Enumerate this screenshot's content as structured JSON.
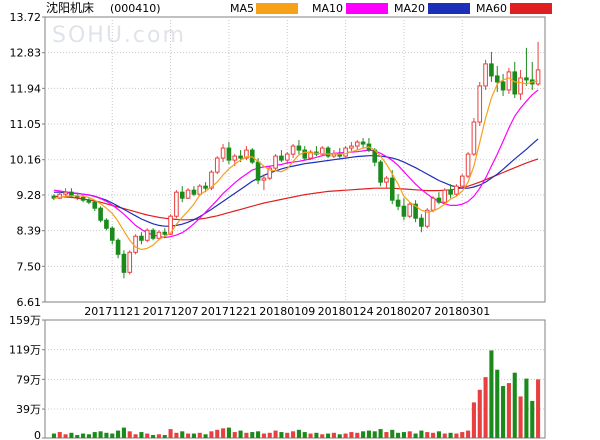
{
  "header": {
    "title": "沈阳机床",
    "code": "(000410)",
    "watermark": "SOHU.com"
  },
  "legend": [
    {
      "label": "MA5",
      "color": "#f7a11a"
    },
    {
      "label": "MA10",
      "color": "#ff00ff"
    },
    {
      "label": "MA20",
      "color": "#1c2fb8"
    },
    {
      "label": "MA60",
      "color": "#e02020"
    }
  ],
  "colors": {
    "up": "#e84040",
    "down": "#1a8a1a",
    "grid": "#c8c8c8",
    "axis": "#808080"
  },
  "chart_data": [
    {
      "type": "candlestick",
      "ylim": [
        6.61,
        13.72
      ],
      "y_ticks": [
        "13.72",
        "12.83",
        "11.94",
        "11.05",
        "10.16",
        "9.28",
        "8.39",
        "7.50",
        "6.61"
      ],
      "x_tick_labels": [
        "20171121",
        "20171207",
        "20171221",
        "20180109",
        "20180124",
        "20180207",
        "20180301"
      ],
      "x_tick_index": [
        10,
        20,
        30,
        40,
        50,
        60,
        70
      ],
      "ohlc": [
        [
          9.25,
          9.3,
          9.15,
          9.2
        ],
        [
          9.2,
          9.35,
          9.18,
          9.3
        ],
        [
          9.3,
          9.45,
          9.22,
          9.35
        ],
        [
          9.35,
          9.45,
          9.2,
          9.25
        ],
        [
          9.25,
          9.3,
          9.15,
          9.22
        ],
        [
          9.22,
          9.28,
          9.1,
          9.15
        ],
        [
          9.15,
          9.2,
          9.05,
          9.1
        ],
        [
          9.1,
          9.15,
          8.88,
          8.95
        ],
        [
          8.95,
          9.0,
          8.6,
          8.65
        ],
        [
          8.65,
          8.7,
          8.4,
          8.45
        ],
        [
          8.45,
          8.5,
          8.05,
          8.15
        ],
        [
          8.15,
          8.2,
          7.7,
          7.8
        ],
        [
          7.8,
          7.9,
          7.2,
          7.35
        ],
        [
          7.35,
          7.9,
          7.3,
          7.85
        ],
        [
          7.85,
          8.3,
          7.8,
          8.25
        ],
        [
          8.25,
          8.35,
          8.05,
          8.15
        ],
        [
          8.15,
          8.45,
          8.1,
          8.4
        ],
        [
          8.4,
          8.45,
          8.15,
          8.2
        ],
        [
          8.2,
          8.4,
          8.15,
          8.35
        ],
        [
          8.35,
          8.45,
          8.2,
          8.3
        ],
        [
          8.3,
          8.8,
          8.28,
          8.75
        ],
        [
          8.75,
          9.4,
          8.7,
          9.35
        ],
        [
          9.35,
          9.5,
          9.1,
          9.2
        ],
        [
          9.2,
          9.45,
          9.18,
          9.4
        ],
        [
          9.4,
          9.5,
          9.25,
          9.3
        ],
        [
          9.3,
          9.55,
          9.25,
          9.5
        ],
        [
          9.5,
          9.6,
          9.35,
          9.45
        ],
        [
          9.45,
          9.9,
          9.4,
          9.85
        ],
        [
          9.85,
          10.25,
          9.8,
          10.2
        ],
        [
          10.2,
          10.55,
          10.1,
          10.45
        ],
        [
          10.45,
          10.6,
          10.05,
          10.15
        ],
        [
          10.15,
          10.3,
          10.0,
          10.25
        ],
        [
          10.25,
          10.4,
          10.1,
          10.2
        ],
        [
          10.2,
          10.5,
          10.15,
          10.4
        ],
        [
          10.4,
          10.45,
          10.05,
          10.1
        ],
        [
          10.1,
          10.2,
          9.55,
          9.65
        ],
        [
          9.65,
          9.8,
          9.4,
          9.7
        ],
        [
          9.7,
          10.0,
          9.65,
          9.95
        ],
        [
          9.95,
          10.3,
          9.9,
          10.25
        ],
        [
          10.25,
          10.4,
          10.1,
          10.15
        ],
        [
          10.15,
          10.35,
          10.05,
          10.3
        ],
        [
          10.3,
          10.55,
          10.2,
          10.5
        ],
        [
          10.5,
          10.65,
          10.3,
          10.4
        ],
        [
          10.4,
          10.5,
          10.15,
          10.2
        ],
        [
          10.2,
          10.4,
          10.15,
          10.35
        ],
        [
          10.35,
          10.5,
          10.25,
          10.3
        ],
        [
          10.3,
          10.5,
          10.25,
          10.45
        ],
        [
          10.45,
          10.5,
          10.2,
          10.25
        ],
        [
          10.25,
          10.4,
          10.2,
          10.3
        ],
        [
          10.3,
          10.45,
          10.2,
          10.25
        ],
        [
          10.25,
          10.5,
          10.2,
          10.45
        ],
        [
          10.45,
          10.6,
          10.35,
          10.5
        ],
        [
          10.5,
          10.65,
          10.4,
          10.6
        ],
        [
          10.6,
          10.7,
          10.45,
          10.55
        ],
        [
          10.55,
          10.7,
          10.35,
          10.4
        ],
        [
          10.4,
          10.45,
          10.0,
          10.1
        ],
        [
          10.1,
          10.15,
          9.5,
          9.6
        ],
        [
          9.6,
          9.75,
          9.45,
          9.7
        ],
        [
          9.7,
          9.9,
          9.05,
          9.15
        ],
        [
          9.15,
          9.3,
          8.9,
          9.0
        ],
        [
          9.0,
          9.2,
          8.65,
          8.75
        ],
        [
          8.75,
          9.1,
          8.7,
          9.05
        ],
        [
          9.05,
          9.15,
          8.6,
          8.7
        ],
        [
          8.7,
          8.8,
          8.35,
          8.5
        ],
        [
          8.5,
          8.95,
          8.45,
          8.9
        ],
        [
          8.9,
          9.25,
          8.85,
          9.2
        ],
        [
          9.2,
          9.35,
          9.05,
          9.1
        ],
        [
          9.1,
          9.45,
          9.05,
          9.4
        ],
        [
          9.4,
          9.55,
          9.2,
          9.3
        ],
        [
          9.3,
          9.55,
          9.25,
          9.5
        ],
        [
          9.5,
          9.8,
          9.45,
          9.75
        ],
        [
          9.75,
          10.35,
          9.7,
          10.3
        ],
        [
          10.3,
          11.2,
          10.25,
          11.1
        ],
        [
          11.1,
          12.1,
          11.0,
          12.0
        ],
        [
          12.0,
          12.65,
          11.9,
          12.55
        ],
        [
          12.55,
          12.85,
          12.1,
          12.25
        ],
        [
          12.25,
          12.5,
          11.85,
          12.1
        ],
        [
          12.1,
          12.3,
          11.75,
          11.9
        ],
        [
          11.9,
          12.45,
          11.8,
          12.35
        ],
        [
          12.35,
          12.6,
          11.7,
          11.8
        ],
        [
          11.8,
          12.4,
          11.65,
          12.2
        ],
        [
          12.2,
          12.95,
          12.0,
          12.15
        ],
        [
          12.15,
          12.6,
          11.9,
          12.05
        ],
        [
          12.05,
          13.1,
          12.0,
          12.4
        ]
      ],
      "ma": {
        "MA5": [
          9.2,
          9.22,
          9.25,
          9.26,
          9.26,
          9.25,
          9.22,
          9.15,
          9.06,
          8.95,
          8.82,
          8.62,
          8.38,
          8.15,
          7.98,
          7.92,
          7.95,
          8.03,
          8.17,
          8.25,
          8.33,
          8.55,
          8.72,
          8.88,
          9.05,
          9.28,
          9.38,
          9.48,
          9.6,
          9.78,
          9.93,
          10.05,
          10.15,
          10.23,
          10.23,
          10.12,
          10.0,
          9.9,
          9.88,
          9.86,
          9.93,
          10.12,
          10.28,
          10.35,
          10.33,
          10.32,
          10.31,
          10.3,
          10.31,
          10.3,
          10.31,
          10.36,
          10.4,
          10.45,
          10.48,
          10.4,
          10.25,
          10.05,
          9.8,
          9.55,
          9.25,
          9.1,
          9.0,
          8.9,
          8.85,
          8.88,
          8.95,
          9.05,
          9.18,
          9.25,
          9.38,
          9.6,
          10.0,
          10.6,
          11.2,
          11.7,
          12.05,
          12.15,
          12.2,
          12.1,
          12.08,
          12.05,
          12.1,
          12.12
        ],
        "MA10": [
          9.4,
          9.38,
          9.36,
          9.34,
          9.32,
          9.3,
          9.28,
          9.24,
          9.19,
          9.12,
          9.03,
          8.92,
          8.8,
          8.66,
          8.52,
          8.42,
          8.34,
          8.28,
          8.25,
          8.22,
          8.24,
          8.28,
          8.34,
          8.44,
          8.56,
          8.7,
          8.85,
          9.0,
          9.15,
          9.32,
          9.45,
          9.58,
          9.7,
          9.8,
          9.9,
          9.95,
          9.98,
          10.0,
          10.02,
          10.04,
          10.08,
          10.1,
          10.12,
          10.15,
          10.18,
          10.22,
          10.26,
          10.3,
          10.32,
          10.33,
          10.34,
          10.35,
          10.36,
          10.38,
          10.4,
          10.38,
          10.32,
          10.24,
          10.14,
          10.02,
          9.86,
          9.7,
          9.55,
          9.42,
          9.3,
          9.2,
          9.12,
          9.06,
          9.02,
          9.02,
          9.05,
          9.12,
          9.25,
          9.45,
          9.7,
          10.0,
          10.3,
          10.62,
          10.95,
          11.25,
          11.45,
          11.62,
          11.78,
          11.9
        ],
        "MA20": [
          9.35,
          9.35,
          9.34,
          9.33,
          9.32,
          9.3,
          9.28,
          9.25,
          9.2,
          9.15,
          9.08,
          9.0,
          8.92,
          8.84,
          8.76,
          8.68,
          8.62,
          8.56,
          8.52,
          8.5,
          8.5,
          8.52,
          8.55,
          8.6,
          8.66,
          8.74,
          8.83,
          8.92,
          9.02,
          9.12,
          9.22,
          9.32,
          9.42,
          9.52,
          9.62,
          9.7,
          9.77,
          9.83,
          9.88,
          9.93,
          9.97,
          10.0,
          10.03,
          10.06,
          10.08,
          10.1,
          10.12,
          10.14,
          10.16,
          10.18,
          10.2,
          10.22,
          10.24,
          10.25,
          10.26,
          10.26,
          10.25,
          10.23,
          10.2,
          10.16,
          10.1,
          10.03,
          9.96,
          9.88,
          9.8,
          9.72,
          9.64,
          9.58,
          9.52,
          9.48,
          9.45,
          9.45,
          9.48,
          9.53,
          9.6,
          9.7,
          9.8,
          9.92,
          10.05,
          10.18,
          10.3,
          10.42,
          10.55,
          10.68
        ],
        "MA60": [
          9.25,
          9.24,
          9.23,
          9.22,
          9.2,
          9.18,
          9.16,
          9.13,
          9.1,
          9.06,
          9.02,
          8.98,
          8.94,
          8.9,
          8.86,
          8.82,
          8.78,
          8.75,
          8.72,
          8.7,
          8.68,
          8.67,
          8.66,
          8.66,
          8.67,
          8.68,
          8.7,
          8.73,
          8.76,
          8.8,
          8.84,
          8.88,
          8.92,
          8.96,
          9.0,
          9.04,
          9.08,
          9.11,
          9.14,
          9.17,
          9.2,
          9.23,
          9.26,
          9.29,
          9.31,
          9.33,
          9.35,
          9.37,
          9.38,
          9.39,
          9.4,
          9.41,
          9.42,
          9.43,
          9.44,
          9.45,
          9.45,
          9.45,
          9.45,
          9.44,
          9.43,
          9.42,
          9.41,
          9.4,
          9.39,
          9.39,
          9.39,
          9.4,
          9.41,
          9.43,
          9.46,
          9.5,
          9.55,
          9.6,
          9.66,
          9.72,
          9.78,
          9.84,
          9.9,
          9.96,
          10.02,
          10.08,
          10.13,
          10.18
        ]
      }
    },
    {
      "type": "bar",
      "title": "volume",
      "ylim": [
        0,
        159
      ],
      "y_ticks": [
        "159万",
        "119万",
        "79万",
        "39万",
        "0"
      ],
      "values": [
        6,
        8,
        5,
        7,
        4,
        6,
        5,
        8,
        9,
        7,
        6,
        10,
        14,
        9,
        5,
        8,
        6,
        4,
        5,
        4,
        12,
        7,
        9,
        6,
        6,
        7,
        5,
        9,
        11,
        13,
        14,
        8,
        10,
        7,
        8,
        9,
        6,
        7,
        10,
        8,
        7,
        9,
        11,
        8,
        6,
        7,
        5,
        6,
        7,
        5,
        6,
        8,
        7,
        9,
        10,
        9,
        12,
        8,
        11,
        7,
        8,
        9,
        6,
        10,
        8,
        7,
        9,
        6,
        7,
        6,
        8,
        10,
        48,
        65,
        82,
        118,
        92,
        70,
        74,
        88,
        56,
        80,
        50,
        79
      ],
      "up_flags": [
        0,
        1,
        1,
        0,
        0,
        0,
        0,
        0,
        0,
        0,
        0,
        0,
        0,
        1,
        1,
        0,
        1,
        0,
        1,
        0,
        1,
        1,
        0,
        1,
        0,
        1,
        0,
        1,
        1,
        1,
        0,
        1,
        0,
        1,
        0,
        0,
        1,
        1,
        1,
        0,
        1,
        1,
        0,
        0,
        1,
        0,
        1,
        0,
        1,
        0,
        1,
        1,
        1,
        0,
        0,
        0,
        0,
        1,
        0,
        0,
        0,
        1,
        0,
        0,
        1,
        1,
        0,
        1,
        0,
        1,
        1,
        1,
        1,
        1,
        1,
        0,
        0,
        0,
        1,
        0,
        1,
        0,
        0,
        1
      ]
    }
  ]
}
